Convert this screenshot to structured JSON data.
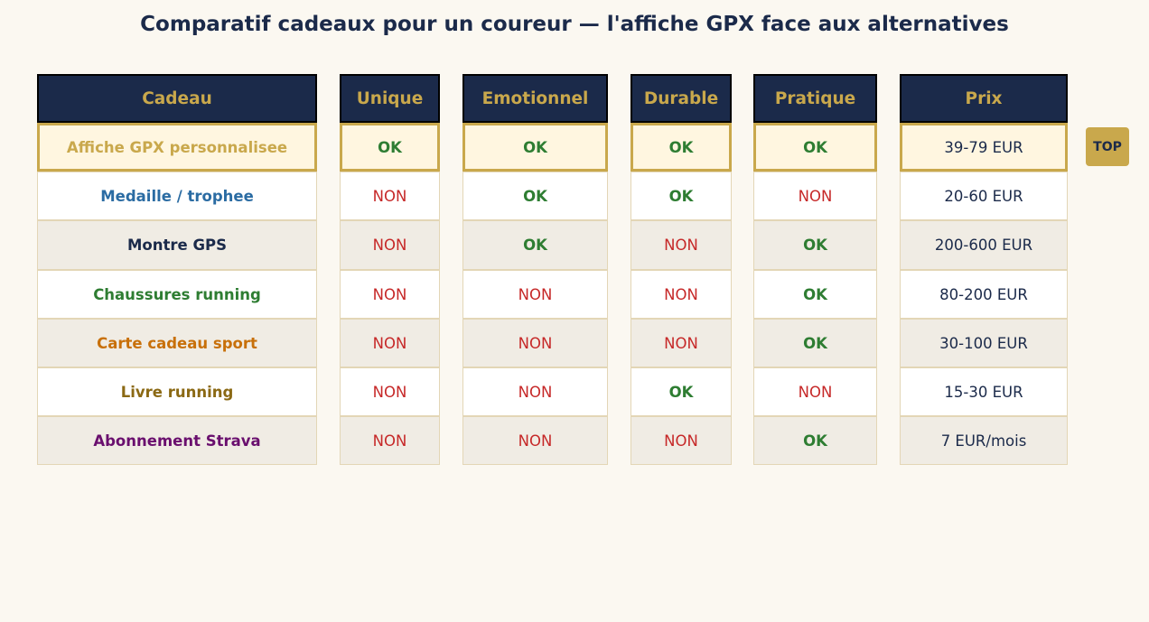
{
  "chart_data": {
    "type": "table",
    "title": "Comparatif cadeaux pour un coureur — l'affiche GPX face aux alternatives",
    "columns": [
      "Cadeau",
      "Unique",
      "Emotionnel",
      "Durable",
      "Pratique",
      "Prix"
    ],
    "rows": [
      {
        "name": "Affiche GPX personnalisee",
        "unique": "OK",
        "emotionnel": "OK",
        "durable": "OK",
        "pratique": "OK",
        "prix": "39-79 EUR",
        "name_color": "#c9a84c",
        "highlight": true
      },
      {
        "name": "Medaille / trophee",
        "unique": "NON",
        "emotionnel": "OK",
        "durable": "OK",
        "pratique": "NON",
        "prix": "20-60 EUR",
        "name_color": "#2b6ca3",
        "highlight": false
      },
      {
        "name": "Montre GPS",
        "unique": "NON",
        "emotionnel": "OK",
        "durable": "NON",
        "pratique": "OK",
        "prix": "200-600 EUR",
        "name_color": "#1b2a4a",
        "highlight": false
      },
      {
        "name": "Chaussures running",
        "unique": "NON",
        "emotionnel": "NON",
        "durable": "NON",
        "pratique": "OK",
        "prix": "80-200 EUR",
        "name_color": "#2e7d32",
        "highlight": false
      },
      {
        "name": "Carte cadeau sport",
        "unique": "NON",
        "emotionnel": "NON",
        "durable": "NON",
        "pratique": "OK",
        "prix": "30-100 EUR",
        "name_color": "#c8700a",
        "highlight": false
      },
      {
        "name": "Livre running",
        "unique": "NON",
        "emotionnel": "NON",
        "durable": "OK",
        "pratique": "NON",
        "prix": "15-30 EUR",
        "name_color": "#8b6914",
        "highlight": false
      },
      {
        "name": "Abonnement Strava",
        "unique": "NON",
        "emotionnel": "NON",
        "durable": "NON",
        "pratique": "OK",
        "prix": "7 EUR/mois",
        "name_color": "#6a0f6e",
        "highlight": false
      }
    ],
    "badge": "TOP",
    "colors": {
      "header_bg": "#1b2a4a",
      "header_text": "#c9a84c",
      "ok": "#2e7d32",
      "non": "#c62828",
      "highlight_bg": "#fff6e0",
      "highlight_border": "#c9a84c",
      "badge_bg": "#c9a84c"
    }
  }
}
